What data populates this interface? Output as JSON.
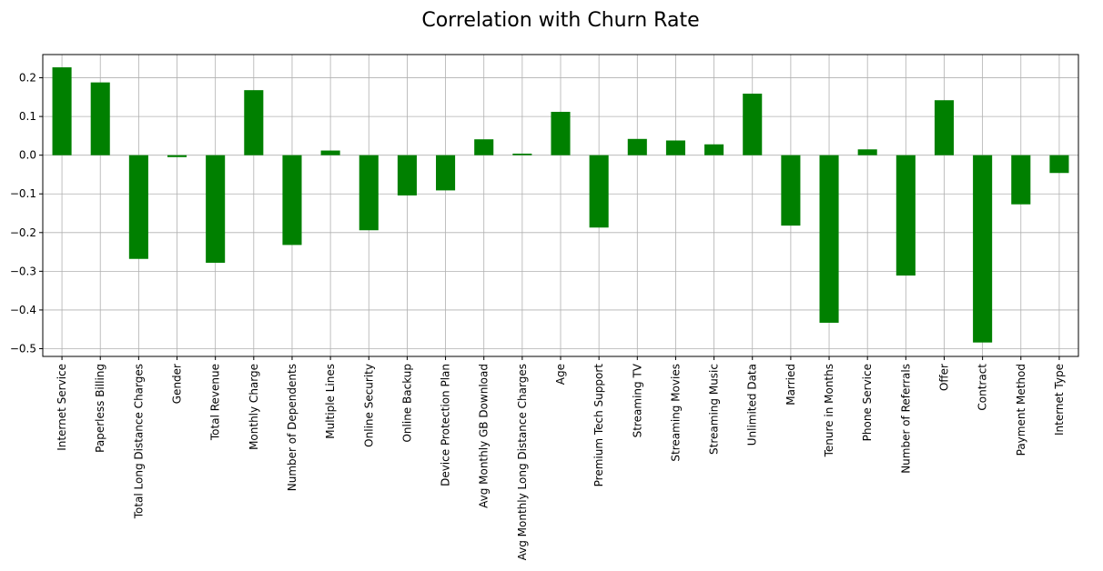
{
  "chart_data": {
    "type": "bar",
    "title": "Correlation with Churn Rate",
    "xlabel": "",
    "ylabel": "",
    "ylim": [
      -0.52,
      0.26
    ],
    "yticks": [
      0.2,
      0.1,
      0.0,
      -0.1,
      -0.2,
      -0.3,
      -0.4,
      -0.5
    ],
    "ytick_labels": [
      "0.2",
      "0.1",
      "0.0",
      "−0.1",
      "−0.2",
      "−0.3",
      "−0.4",
      "−0.5"
    ],
    "grid": true,
    "bar_color": "#008000",
    "categories": [
      "Internet Service",
      "Paperless Billing",
      "Total Long Distance Charges",
      "Gender",
      "Total Revenue",
      "Monthly Charge",
      "Number of Dependents",
      "Multiple Lines",
      "Online Security",
      "Online Backup",
      "Device Protection Plan",
      "Avg Monthly GB Download",
      "Avg Monthly Long Distance Charges",
      "Age",
      "Premium Tech Support",
      "Streaming TV",
      "Streaming Movies",
      "Streaming Music",
      "Unlimited Data",
      "Married",
      "Tenure in Months",
      "Phone Service",
      "Number of Referrals",
      "Offer",
      "Contract",
      "Payment Method",
      "Internet Type"
    ],
    "values": [
      0.227,
      0.188,
      -0.268,
      -0.005,
      -0.278,
      0.168,
      -0.232,
      0.012,
      -0.194,
      -0.104,
      -0.091,
      0.041,
      0.004,
      0.112,
      -0.187,
      0.042,
      0.038,
      0.028,
      0.159,
      -0.182,
      -0.433,
      0.015,
      -0.311,
      0.142,
      -0.484,
      -0.127,
      -0.046
    ]
  }
}
